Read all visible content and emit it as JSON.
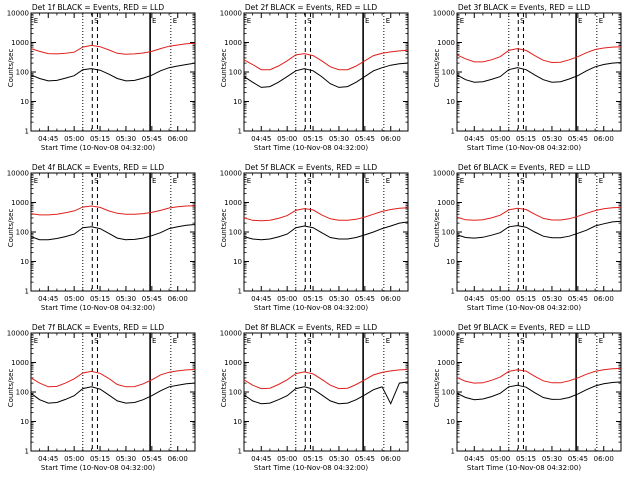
{
  "figure": {
    "panels": [
      {
        "title": "Det 1f BLACK = Events, RED = LLD",
        "xlabel": "Start Time (10-Nov-08 04:32:00)",
        "ylabel": "Counts/sec"
      },
      {
        "title": "Det 2f BLACK = Events, RED = LLD",
        "xlabel": "Start Time (10-Nov-08 04:32:00)",
        "ylabel": "Counts/sec"
      },
      {
        "title": "Det 3f BLACK = Events, RED = LLD",
        "xlabel": "Start Time (10-Nov-08 04:32:00)",
        "ylabel": "Counts/sec"
      },
      {
        "title": "Det 4f BLACK = Events, RED = LLD",
        "xlabel": "Start Time (10-Nov-08 04:32:00)",
        "ylabel": "Counts/sec"
      },
      {
        "title": "Det 5f BLACK = Events, RED = LLD",
        "xlabel": "Start Time (10-Nov-08 04:32:00)",
        "ylabel": "Counts/sec"
      },
      {
        "title": "Det 6f BLACK = Events, RED = LLD",
        "xlabel": "Start Time (10-Nov-08 04:32:00)",
        "ylabel": "Counts/sec"
      },
      {
        "title": "Det 7f BLACK = Events, RED = LLD",
        "xlabel": "Start Time (10-Nov-08 04:32:00)",
        "ylabel": "Counts/sec"
      },
      {
        "title": "Det 8f BLACK = Events, RED = LLD",
        "xlabel": "Start Time (10-Nov-08 04:32:00)",
        "ylabel": "Counts/sec"
      },
      {
        "title": "Det 9f BLACK = Events, RED = LLD",
        "xlabel": "Start Time (10-Nov-08 04:32:00)",
        "ylabel": "Counts/sec"
      }
    ]
  },
  "chart_data": [
    {
      "type": "line",
      "title": "Det 1f BLACK = Events, RED = LLD",
      "xlabel": "Start Time (10-Nov-08 04:32:00)",
      "ylabel": "Counts/sec",
      "x_tick_labels": [
        "04:45",
        "05:00",
        "05:15",
        "05:30",
        "05:45",
        "06:00"
      ],
      "y_tick_labels": [
        "1",
        "10",
        "100",
        "1000",
        "10000"
      ],
      "y_scale": "log",
      "ylim": [
        1,
        10000
      ],
      "x": [
        0,
        5,
        10,
        15,
        20,
        25,
        30,
        35,
        40,
        45,
        50,
        55,
        60,
        65,
        70,
        75,
        80,
        85,
        90,
        95
      ],
      "series": [
        {
          "color": "#000000",
          "values": [
            80,
            60,
            50,
            52,
            62,
            75,
            120,
            130,
            115,
            85,
            60,
            50,
            52,
            62,
            78,
            110,
            140,
            160,
            180,
            200
          ]
        },
        {
          "color": "#e0201c",
          "values": [
            620,
            500,
            420,
            410,
            430,
            470,
            700,
            800,
            720,
            560,
            430,
            400,
            410,
            440,
            500,
            620,
            750,
            820,
            900,
            950
          ]
        }
      ],
      "annotations": [
        "E",
        "S",
        "E",
        "E"
      ],
      "grid": false
    },
    {
      "type": "line",
      "title": "Det 2f BLACK = Events, RED = LLD",
      "xlabel": "Start Time (10-Nov-08 04:32:00)",
      "ylabel": "Counts/sec",
      "x_tick_labels": [
        "04:45",
        "05:00",
        "05:15",
        "05:30",
        "05:45",
        "06:00"
      ],
      "y_tick_labels": [
        "1",
        "10",
        "100",
        "1000",
        "10000"
      ],
      "y_scale": "log",
      "ylim": [
        1,
        10000
      ],
      "x": [
        0,
        5,
        10,
        15,
        20,
        25,
        30,
        35,
        40,
        45,
        50,
        55,
        60,
        65,
        70,
        75,
        80,
        85,
        90,
        95
      ],
      "series": [
        {
          "color": "#000000",
          "values": [
            70,
            45,
            30,
            32,
            45,
            70,
            110,
            130,
            110,
            70,
            40,
            30,
            32,
            45,
            70,
            110,
            140,
            170,
            190,
            200
          ]
        },
        {
          "color": "#e0201c",
          "values": [
            260,
            180,
            120,
            120,
            160,
            240,
            380,
            420,
            360,
            240,
            150,
            120,
            120,
            160,
            240,
            360,
            430,
            480,
            520,
            550
          ]
        }
      ],
      "annotations": [
        "E",
        "S",
        "E",
        "E"
      ],
      "grid": false
    },
    {
      "type": "line",
      "title": "Det 3f BLACK = Events, RED = LLD",
      "xlabel": "Start Time (10-Nov-08 04:32:00)",
      "ylabel": "Counts/sec",
      "x_tick_labels": [
        "04:45",
        "05:00",
        "05:15",
        "05:30",
        "05:45",
        "06:00"
      ],
      "y_tick_labels": [
        "1",
        "10",
        "100",
        "1000",
        "10000"
      ],
      "y_scale": "log",
      "ylim": [
        1,
        10000
      ],
      "x": [
        0,
        5,
        10,
        15,
        20,
        25,
        30,
        35,
        40,
        45,
        50,
        55,
        60,
        65,
        70,
        75,
        80,
        85,
        90,
        95
      ],
      "series": [
        {
          "color": "#000000",
          "values": [
            80,
            55,
            45,
            47,
            56,
            70,
            120,
            140,
            120,
            80,
            55,
            45,
            47,
            58,
            75,
            110,
            150,
            180,
            200,
            210
          ]
        },
        {
          "color": "#e0201c",
          "values": [
            380,
            280,
            220,
            220,
            260,
            330,
            540,
            620,
            540,
            360,
            250,
            210,
            215,
            260,
            330,
            450,
            580,
            650,
            700,
            720
          ]
        }
      ],
      "annotations": [
        "E",
        "S",
        "E",
        "E"
      ],
      "grid": false
    },
    {
      "type": "line",
      "title": "Det 4f BLACK = Events, RED = LLD",
      "xlabel": "Start Time (10-Nov-08 04:32:00)",
      "ylabel": "Counts/sec",
      "x_tick_labels": [
        "04:45",
        "05:00",
        "05:15",
        "05:30",
        "05:45",
        "06:00"
      ],
      "y_tick_labels": [
        "1",
        "10",
        "100",
        "1000",
        "10000"
      ],
      "y_scale": "log",
      "ylim": [
        1,
        10000
      ],
      "x": [
        0,
        5,
        10,
        15,
        20,
        25,
        30,
        35,
        40,
        45,
        50,
        55,
        60,
        65,
        70,
        75,
        80,
        85,
        90,
        95
      ],
      "series": [
        {
          "color": "#000000",
          "values": [
            70,
            55,
            55,
            60,
            70,
            85,
            140,
            150,
            130,
            90,
            62,
            55,
            56,
            62,
            75,
            95,
            130,
            150,
            170,
            180
          ]
        },
        {
          "color": "#e0201c",
          "values": [
            420,
            380,
            380,
            400,
            450,
            520,
            700,
            760,
            680,
            520,
            430,
            400,
            400,
            420,
            460,
            540,
            650,
            720,
            760,
            780
          ]
        }
      ],
      "annotations": [
        "E",
        "S",
        "E",
        "E"
      ],
      "grid": false
    },
    {
      "type": "line",
      "title": "Det 5f BLACK = Events, RED = LLD",
      "xlabel": "Start Time (10-Nov-08 04:32:00)",
      "ylabel": "Counts/sec",
      "x_tick_labels": [
        "04:45",
        "05:00",
        "05:15",
        "05:30",
        "05:45",
        "06:00"
      ],
      "y_tick_labels": [
        "1",
        "10",
        "100",
        "1000",
        "10000"
      ],
      "y_scale": "log",
      "ylim": [
        1,
        10000
      ],
      "x": [
        0,
        5,
        10,
        15,
        20,
        25,
        30,
        35,
        40,
        45,
        50,
        55,
        60,
        65,
        70,
        75,
        80,
        85,
        90,
        95
      ],
      "series": [
        {
          "color": "#000000",
          "values": [
            70,
            58,
            55,
            58,
            68,
            85,
            140,
            160,
            140,
            95,
            65,
            58,
            58,
            65,
            80,
            100,
            130,
            160,
            200,
            220
          ]
        },
        {
          "color": "#e0201c",
          "values": [
            300,
            250,
            240,
            250,
            290,
            360,
            540,
            620,
            560,
            380,
            280,
            250,
            250,
            270,
            320,
            400,
            500,
            580,
            640,
            660
          ]
        }
      ],
      "annotations": [
        "E",
        "S",
        "E",
        "E"
      ],
      "grid": false
    },
    {
      "type": "line",
      "title": "Det 6f BLACK = Events, RED = LLD",
      "xlabel": "Start Time (10-Nov-08 04:32:00)",
      "ylabel": "Counts/sec",
      "x_tick_labels": [
        "04:45",
        "05:00",
        "05:15",
        "05:30",
        "05:45",
        "06:00"
      ],
      "y_tick_labels": [
        "1",
        "10",
        "100",
        "1000",
        "10000"
      ],
      "y_scale": "log",
      "ylim": [
        1,
        10000
      ],
      "x": [
        0,
        5,
        10,
        15,
        20,
        25,
        30,
        35,
        40,
        45,
        50,
        55,
        60,
        65,
        70,
        75,
        80,
        85,
        90,
        95
      ],
      "series": [
        {
          "color": "#000000",
          "values": [
            80,
            65,
            62,
            66,
            78,
            95,
            150,
            165,
            145,
            100,
            72,
            64,
            64,
            72,
            90,
            115,
            160,
            190,
            220,
            230
          ]
        },
        {
          "color": "#e0201c",
          "values": [
            320,
            260,
            250,
            260,
            300,
            370,
            560,
            640,
            580,
            400,
            290,
            255,
            255,
            280,
            340,
            430,
            530,
            610,
            660,
            680
          ]
        }
      ],
      "annotations": [
        "E",
        "S",
        "E",
        "E"
      ],
      "grid": false
    },
    {
      "type": "line",
      "title": "Det 7f BLACK = Events, RED = LLD",
      "xlabel": "Start Time (10-Nov-08 04:32:00)",
      "ylabel": "Counts/sec",
      "x_tick_labels": [
        "04:45",
        "05:00",
        "05:15",
        "05:30",
        "05:45",
        "06:00"
      ],
      "y_tick_labels": [
        "1",
        "10",
        "100",
        "1000",
        "10000"
      ],
      "y_scale": "log",
      "ylim": [
        1,
        10000
      ],
      "x": [
        0,
        5,
        10,
        15,
        20,
        25,
        30,
        35,
        40,
        45,
        50,
        55,
        60,
        65,
        70,
        75,
        80,
        85,
        90,
        95
      ],
      "series": [
        {
          "color": "#000000",
          "values": [
            90,
            55,
            42,
            44,
            56,
            75,
            130,
            150,
            125,
            80,
            50,
            42,
            44,
            55,
            75,
            110,
            150,
            170,
            190,
            200
          ]
        },
        {
          "color": "#e0201c",
          "values": [
            300,
            200,
            150,
            155,
            200,
            280,
            440,
            500,
            430,
            290,
            180,
            150,
            152,
            190,
            260,
            380,
            470,
            520,
            560,
            580
          ]
        }
      ],
      "annotations": [
        "E",
        "S",
        "E",
        "E"
      ],
      "grid": false
    },
    {
      "type": "line",
      "title": "Det 8f BLACK = Events, RED = LLD",
      "xlabel": "Start Time (10-Nov-08 04:32:00)",
      "ylabel": "Counts/sec",
      "x_tick_labels": [
        "04:45",
        "05:00",
        "05:15",
        "05:30",
        "05:45",
        "06:00"
      ],
      "y_tick_labels": [
        "1",
        "10",
        "100",
        "1000",
        "10000"
      ],
      "y_scale": "log",
      "ylim": [
        1,
        10000
      ],
      "x": [
        0,
        5,
        10,
        15,
        20,
        25,
        30,
        35,
        40,
        45,
        50,
        55,
        60,
        65,
        70,
        75,
        80,
        85,
        90,
        95
      ],
      "series": [
        {
          "color": "#000000",
          "values": [
            80,
            50,
            40,
            42,
            55,
            75,
            130,
            150,
            125,
            80,
            50,
            40,
            42,
            55,
            80,
            120,
            150,
            40,
            200,
            220
          ]
        },
        {
          "color": "#e0201c",
          "values": [
            260,
            170,
            130,
            135,
            180,
            260,
            420,
            480,
            410,
            270,
            170,
            130,
            135,
            180,
            260,
            380,
            460,
            520,
            560,
            580
          ]
        }
      ],
      "annotations": [
        "E",
        "S",
        "E",
        "E"
      ],
      "grid": false
    },
    {
      "type": "line",
      "title": "Det 9f BLACK = Events, RED = LLD",
      "xlabel": "Start Time (10-Nov-08 04:32:00)",
      "ylabel": "Counts/sec",
      "x_tick_labels": [
        "04:45",
        "05:00",
        "05:15",
        "05:30",
        "05:45",
        "06:00"
      ],
      "y_tick_labels": [
        "1",
        "10",
        "100",
        "1000",
        "10000"
      ],
      "y_scale": "log",
      "ylim": [
        1,
        10000
      ],
      "x": [
        0,
        5,
        10,
        15,
        20,
        25,
        30,
        35,
        40,
        45,
        50,
        55,
        60,
        65,
        70,
        75,
        80,
        85,
        90,
        95
      ],
      "series": [
        {
          "color": "#000000",
          "values": [
            90,
            65,
            55,
            58,
            70,
            90,
            150,
            170,
            145,
            95,
            65,
            56,
            57,
            65,
            85,
            120,
            160,
            190,
            210,
            220
          ]
        },
        {
          "color": "#e0201c",
          "values": [
            310,
            230,
            200,
            205,
            250,
            320,
            500,
            570,
            510,
            340,
            240,
            205,
            205,
            240,
            300,
            400,
            500,
            570,
            610,
            630
          ]
        }
      ],
      "annotations": [
        "E",
        "S",
        "E",
        "E"
      ],
      "grid": false
    }
  ]
}
